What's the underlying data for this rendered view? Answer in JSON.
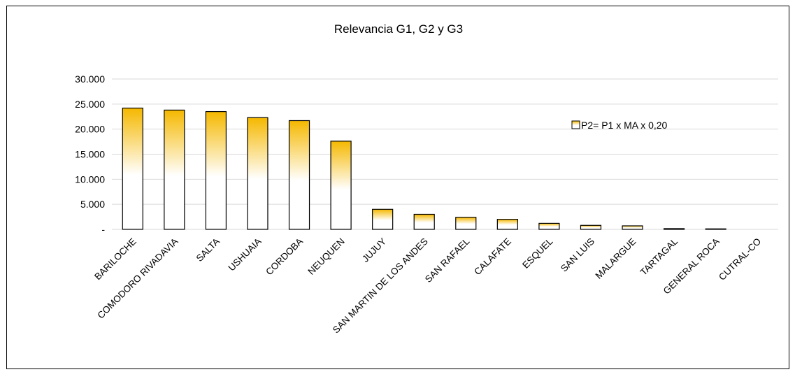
{
  "chart_data": {
    "type": "bar",
    "title": "Relevancia G1, G2 y G3",
    "xlabel": "",
    "ylabel": "",
    "ylim": [
      0,
      30000
    ],
    "yticks": [
      0,
      5000,
      10000,
      15000,
      20000,
      25000,
      30000
    ],
    "ytick_labels": [
      "-",
      "5.000",
      "10.000",
      "15.000",
      "20.000",
      "25.000",
      "30.000"
    ],
    "grid": true,
    "legend_position": "top-right",
    "categories": [
      "BARILOCHE",
      "COMODORO RIVADAVIA",
      "SALTA",
      "USHUAIA",
      "CORDOBA",
      "NEUQUEN",
      "JUJUY",
      "SAN MARTIN DE LOS ANDES",
      "SAN RAFAEL",
      "CALAFATE",
      "ESQUEL",
      "SAN LUIS",
      "MALARGUE",
      "TARTAGAL",
      "GENERAL ROCA",
      "CUTRAL-CO"
    ],
    "series": [
      {
        "name": "P2= P1 x MA x 0,20",
        "color_top": "#f5b800",
        "color_bottom": "#ffffff",
        "values": [
          24200,
          23800,
          23500,
          22300,
          21700,
          17600,
          4000,
          3000,
          2400,
          2000,
          1200,
          800,
          700,
          150,
          100,
          0
        ]
      }
    ]
  }
}
